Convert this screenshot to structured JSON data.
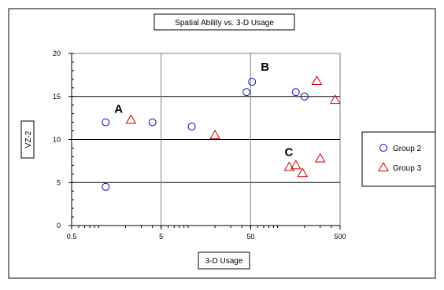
{
  "chart_data": {
    "type": "scatter",
    "title": "Spatial Ability vs. 3-D Usage",
    "xlabel": "3-D Usage",
    "ylabel": "VZ-2",
    "x_scale": "log",
    "xlim": [
      0.5,
      500
    ],
    "ylim": [
      0,
      20
    ],
    "x_ticks": [
      0.5,
      5,
      50,
      500
    ],
    "x_tick_labels": [
      "0.5",
      "5",
      "50",
      "500"
    ],
    "y_ticks": [
      0,
      5,
      10,
      15,
      20
    ],
    "y_tick_labels": [
      "0",
      "5",
      "10",
      "15",
      "20"
    ],
    "grid": true,
    "legend_position": "right",
    "series": [
      {
        "name": "Group 2",
        "marker": "circle",
        "color": "#0000CC",
        "points": [
          {
            "x": 1.2,
            "y": 12.0
          },
          {
            "x": 1.2,
            "y": 4.5
          },
          {
            "x": 4.0,
            "y": 12.0
          },
          {
            "x": 11.0,
            "y": 11.5
          },
          {
            "x": 45.0,
            "y": 15.5
          },
          {
            "x": 52.0,
            "y": 16.7
          },
          {
            "x": 160.0,
            "y": 15.5
          },
          {
            "x": 200.0,
            "y": 15.0
          }
        ]
      },
      {
        "name": "Group 3",
        "marker": "triangle",
        "color": "#CC0000",
        "points": [
          {
            "x": 2.3,
            "y": 12.3
          },
          {
            "x": 20.0,
            "y": 10.5
          },
          {
            "x": 135.0,
            "y": 6.8
          },
          {
            "x": 160.0,
            "y": 7.0
          },
          {
            "x": 190.0,
            "y": 6.1
          },
          {
            "x": 275.0,
            "y": 16.8
          },
          {
            "x": 300.0,
            "y": 7.8
          },
          {
            "x": 440.0,
            "y": 14.6
          }
        ]
      }
    ],
    "annotations": [
      {
        "text": "A",
        "x": 1.5,
        "y": 13.1
      },
      {
        "text": "B",
        "x": 65.0,
        "y": 18.0
      },
      {
        "text": "C",
        "x": 120.0,
        "y": 8.1
      }
    ]
  }
}
